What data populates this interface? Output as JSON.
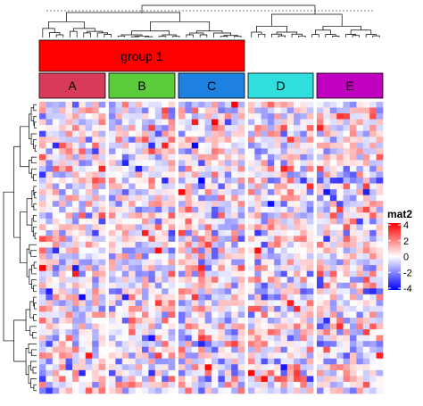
{
  "chart_data": {
    "type": "heatmap",
    "title": "",
    "value_range": [
      -4,
      4
    ],
    "color_scale": {
      "stops": [
        {
          "value": -4,
          "color": "#0000ff"
        },
        {
          "value": 0,
          "color": "#ffffff"
        },
        {
          "value": 4,
          "color": "#ff0000"
        }
      ]
    },
    "legend": {
      "title": "mat2",
      "placement": "right",
      "ticks": [
        "4",
        "2",
        "0",
        "-2",
        "-4"
      ]
    },
    "rows": 50,
    "column_slices": [
      {
        "name": "A",
        "color": "#d83a5a",
        "columns": 10
      },
      {
        "name": "B",
        "color": "#5ccc3c",
        "columns": 10
      },
      {
        "name": "C",
        "color": "#1e80e0",
        "columns": 10
      },
      {
        "name": "D",
        "color": "#30dede",
        "columns": 10
      },
      {
        "name": "E",
        "color": "#c000c0",
        "columns": 10
      }
    ],
    "column_groups": [
      {
        "name": "group 1",
        "color": "#ff0000",
        "slices": [
          "A",
          "B",
          "C"
        ]
      }
    ],
    "row_dendrogram": true,
    "column_dendrogram": true
  }
}
